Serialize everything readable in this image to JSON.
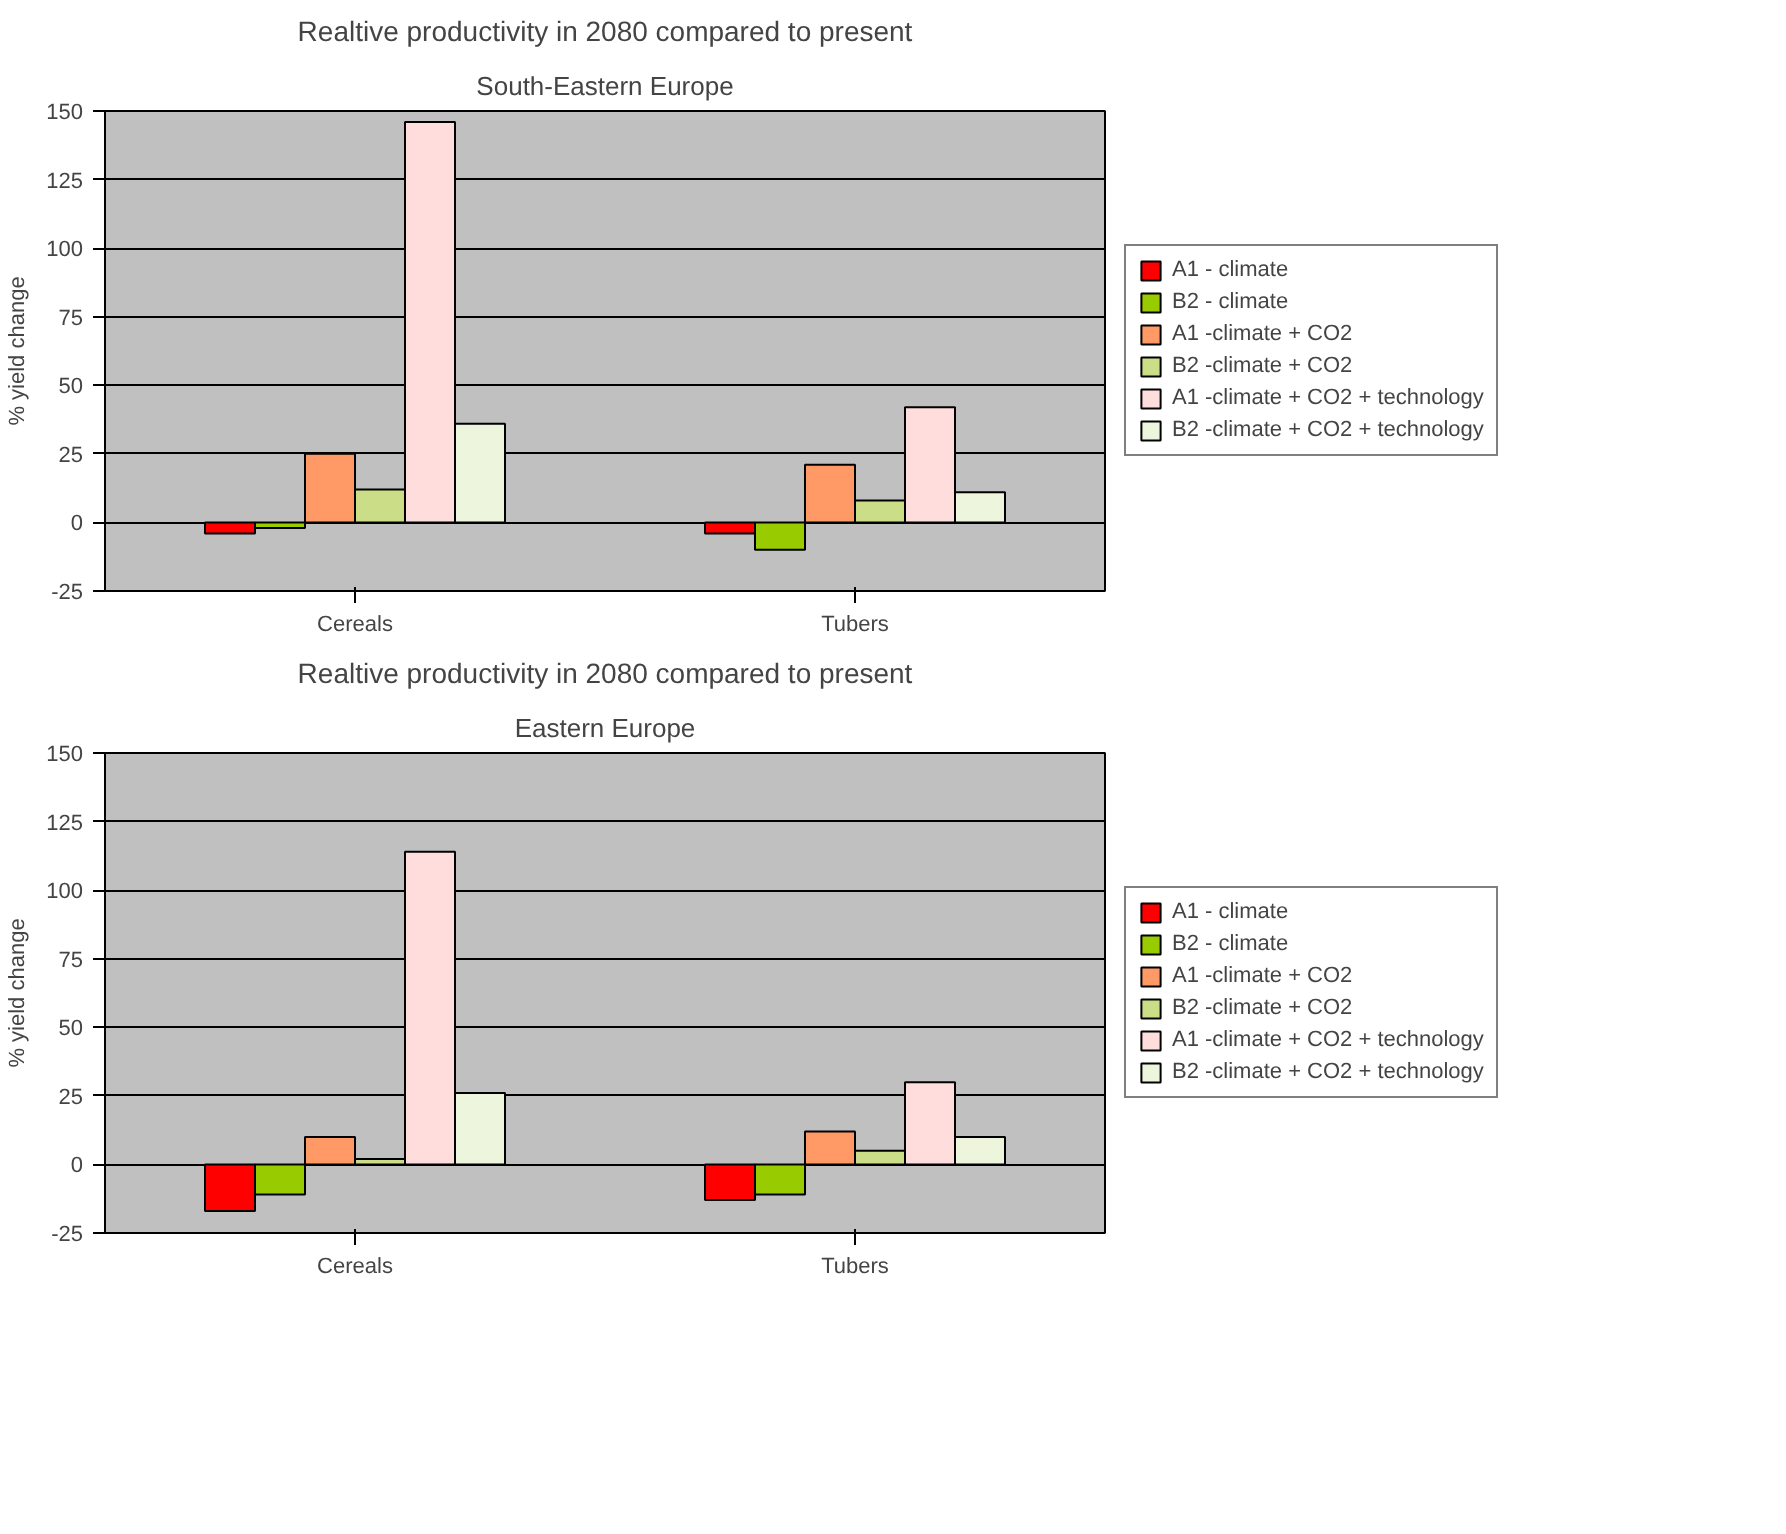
{
  "chart_data": [
    {
      "type": "bar",
      "title": "Realtive productivity in 2080 compared to present",
      "subtitle": "South-Eastern Europe",
      "ylabel": "% yield change",
      "categories": [
        "Cereals",
        "Tubers"
      ],
      "ylim": [
        -25,
        150
      ],
      "yticks": [
        -25,
        0,
        25,
        50,
        75,
        100,
        125,
        150
      ],
      "grid": "y",
      "legend": "right",
      "series": [
        {
          "name": "A1 - climate",
          "color": "#ff0000",
          "values": [
            -4,
            -4
          ]
        },
        {
          "name": "B2 - climate",
          "color": "#99cc00",
          "values": [
            -2,
            -10
          ]
        },
        {
          "name": "A1 -climate + CO2",
          "color": "#ff9966",
          "values": [
            25,
            21
          ]
        },
        {
          "name": "B2 -climate + CO2",
          "color": "#ccdd88",
          "values": [
            12,
            8
          ]
        },
        {
          "name": "A1 -climate + CO2 + technology",
          "color": "#ffdddd",
          "values": [
            146,
            42
          ]
        },
        {
          "name": "B2 -climate + CO2 + technology",
          "color": "#eef5dd",
          "values": [
            36,
            11
          ]
        }
      ]
    },
    {
      "type": "bar",
      "title": "Realtive productivity in 2080 compared to present",
      "subtitle": "Eastern Europe",
      "ylabel": "% yield change",
      "categories": [
        "Cereals",
        "Tubers"
      ],
      "ylim": [
        -25,
        150
      ],
      "yticks": [
        -25,
        0,
        25,
        50,
        75,
        100,
        125,
        150
      ],
      "grid": "y",
      "legend": "right",
      "series": [
        {
          "name": "A1 - climate",
          "color": "#ff0000",
          "values": [
            -17,
            -13
          ]
        },
        {
          "name": "B2 - climate",
          "color": "#99cc00",
          "values": [
            -11,
            -11
          ]
        },
        {
          "name": "A1 -climate + CO2",
          "color": "#ff9966",
          "values": [
            10,
            12
          ]
        },
        {
          "name": "B2 -climate + CO2",
          "color": "#ccdd88",
          "values": [
            2,
            5
          ]
        },
        {
          "name": "A1 -climate + CO2 + technology",
          "color": "#ffdddd",
          "values": [
            114,
            30
          ]
        },
        {
          "name": "B2 -climate + CO2 + technology",
          "color": "#eef5dd",
          "values": [
            26,
            10
          ]
        }
      ]
    }
  ]
}
